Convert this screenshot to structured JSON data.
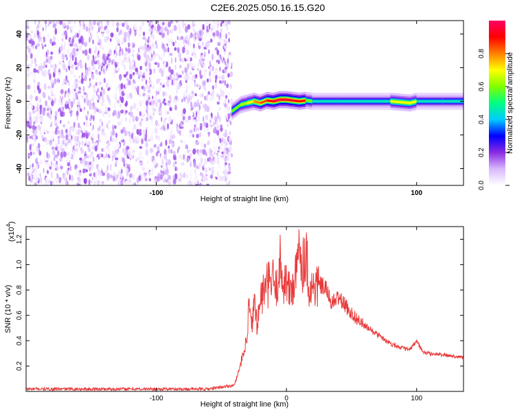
{
  "title": "C2E6.2025.050.16.15.G20",
  "chart_data": [
    {
      "type": "heatmap",
      "xlabel": "Height of straight line (km)",
      "ylabel": "Frequency (Hz)",
      "xlim": [
        -200,
        136
      ],
      "ylim": [
        -50,
        48
      ],
      "xticks": [
        -100,
        0,
        100
      ],
      "xtick_labels": [
        "-100",
        "",
        "100"
      ],
      "yticks": [
        -40,
        -20,
        0,
        20,
        40
      ],
      "colorbar": {
        "label": "Normalized spectral amplitude",
        "range": [
          0,
          1
        ],
        "ticks": [
          0.0,
          0.2,
          0.4,
          0.6,
          0.8
        ],
        "tick_labels": [
          "0.0",
          "0.2",
          "0.4",
          "0.6",
          "0.8"
        ],
        "colors": [
          "#ffffff",
          "#d9b8ff",
          "#8a2be2",
          "#0000ff",
          "#00ccff",
          "#00ff80",
          "#80ff00",
          "#ffff00",
          "#ff8000",
          "#ff0000",
          "#ff0066"
        ]
      },
      "noise_region": {
        "x": [
          -200,
          -42
        ],
        "y": [
          -50,
          48
        ],
        "level": 0.1
      },
      "signal_band": {
        "x": [
          -42,
          -35,
          -30,
          -25,
          -20,
          -15,
          -10,
          -5,
          0,
          5,
          10,
          15,
          20,
          40,
          60,
          80,
          95,
          100,
          120,
          136
        ],
        "center": [
          -6,
          -2,
          -1,
          0,
          -1,
          0.5,
          0,
          1,
          1,
          0.5,
          0,
          0.5,
          0,
          0,
          0,
          0,
          -1,
          0,
          0,
          0
        ],
        "peak_level": [
          0.5,
          0.6,
          0.65,
          0.7,
          0.8,
          0.85,
          0.9,
          0.95,
          0.95,
          0.9,
          0.9,
          0.6,
          0.45,
          0.45,
          0.45,
          0.45,
          0.7,
          0.45,
          0.45,
          0.45
        ]
      }
    },
    {
      "type": "line",
      "xlabel": "Height of straight line (km)",
      "ylabel": "SNR (10 * v/v)",
      "y_multiplier": "(x10",
      "y_exponent": "4",
      "xlim": [
        -200,
        136
      ],
      "ylim": [
        0,
        1.3
      ],
      "xticks": [
        -100,
        0,
        100
      ],
      "xtick_labels": [
        "-100",
        "0",
        "100"
      ],
      "yticks": [
        0.2,
        0.4,
        0.6,
        0.8,
        1.0,
        1.2
      ],
      "ytick_labels": [
        "0.2",
        "0.4",
        "0.6",
        "0.8",
        "1.0",
        "1.2"
      ],
      "series": [
        {
          "color": "#e83a3a",
          "x": [
            -200,
            -150,
            -60,
            -40,
            -30,
            -29,
            -27,
            -25,
            -22,
            -20,
            -15,
            -10,
            -8,
            -5,
            -3,
            0,
            2,
            5,
            8,
            10,
            12,
            15,
            18,
            20,
            25,
            30,
            35,
            40,
            50,
            60,
            70,
            80,
            90,
            95,
            100,
            105,
            110,
            120,
            136
          ],
          "y": [
            0.02,
            0.02,
            0.02,
            0.05,
            0.4,
            0.72,
            0.5,
            0.7,
            0.55,
            0.75,
            0.85,
            0.9,
            0.8,
            1.05,
            0.88,
            0.9,
            0.8,
            0.85,
            0.95,
            1.25,
            1.0,
            1.15,
            0.78,
            0.85,
            0.85,
            0.82,
            0.7,
            0.75,
            0.62,
            0.52,
            0.45,
            0.38,
            0.34,
            0.33,
            0.4,
            0.31,
            0.3,
            0.29,
            0.27
          ]
        }
      ]
    }
  ]
}
